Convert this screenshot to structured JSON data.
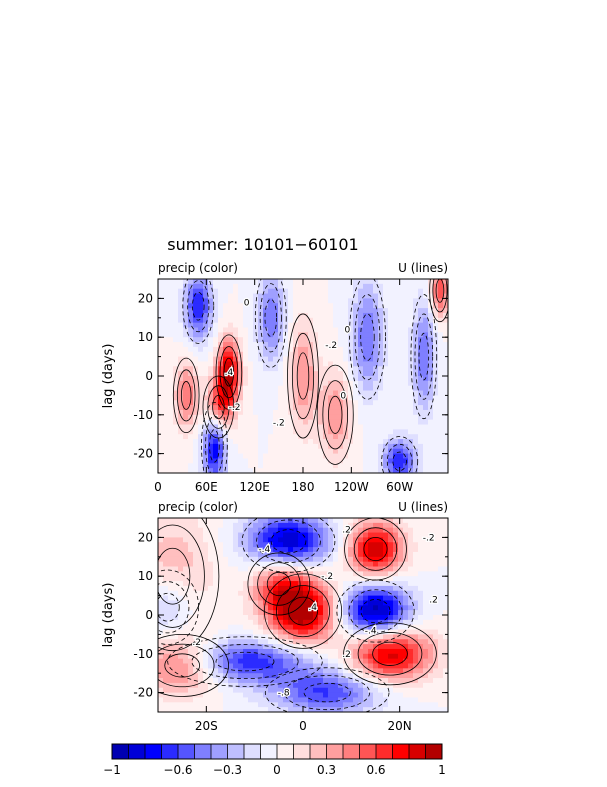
{
  "title": "summer: 10101−60101",
  "chart_data": [
    {
      "type": "heatmap",
      "panel": "top",
      "left_label": "precip (color)",
      "right_label": "U (lines)",
      "ylabel": "lag (days)",
      "ylim": [
        -25,
        25
      ],
      "yticks": [
        -20,
        -10,
        0,
        10,
        20
      ],
      "xlim": [
        0,
        360
      ],
      "xticks": [
        {
          "v": 0,
          "t": "0"
        },
        {
          "v": 60,
          "t": "60E"
        },
        {
          "v": 120,
          "t": "120E"
        },
        {
          "v": 180,
          "t": "180"
        },
        {
          "v": 240,
          "t": "120W"
        },
        {
          "v": 300,
          "t": "60W"
        }
      ],
      "blobs": [
        {
          "x": 88,
          "y": 1,
          "v": 0.9,
          "sx": 10,
          "sy": 6
        },
        {
          "x": 75,
          "y": -8,
          "v": 0.7,
          "sx": 12,
          "sy": 5
        },
        {
          "x": 50,
          "y": 18,
          "v": -0.7,
          "sx": 12,
          "sy": 6
        },
        {
          "x": 70,
          "y": -18,
          "v": -0.8,
          "sx": 10,
          "sy": 7
        },
        {
          "x": 35,
          "y": -5,
          "v": 0.5,
          "sx": 10,
          "sy": 6
        },
        {
          "x": 140,
          "y": 15,
          "v": -0.5,
          "sx": 12,
          "sy": 8
        },
        {
          "x": 180,
          "y": 0,
          "v": 0.4,
          "sx": 12,
          "sy": 10
        },
        {
          "x": 220,
          "y": -10,
          "v": 0.4,
          "sx": 14,
          "sy": 8
        },
        {
          "x": 260,
          "y": 10,
          "v": -0.5,
          "sx": 14,
          "sy": 10
        },
        {
          "x": 300,
          "y": -22,
          "v": -0.7,
          "sx": 14,
          "sy": 4
        },
        {
          "x": 330,
          "y": 5,
          "v": -0.5,
          "sx": 10,
          "sy": 10
        },
        {
          "x": 350,
          "y": 22,
          "v": 0.6,
          "sx": 8,
          "sy": 5
        }
      ],
      "contour_labels": [
        {
          "x": 88,
          "y": 1,
          "t": ".4"
        },
        {
          "x": 110,
          "y": 19,
          "t": "0"
        },
        {
          "x": 215,
          "y": 8,
          "t": "-.2"
        },
        {
          "x": 230,
          "y": -5,
          "t": "0"
        },
        {
          "x": 95,
          "y": -8,
          "t": "-.2"
        },
        {
          "x": 235,
          "y": 12,
          "t": "0"
        },
        {
          "x": 150,
          "y": -12,
          "t": "-.2"
        }
      ]
    },
    {
      "type": "heatmap",
      "panel": "bottom",
      "left_label": "precip (color)",
      "right_label": "U (lines)",
      "ylabel": "lag (days)",
      "ylim": [
        -25,
        25
      ],
      "yticks": [
        -20,
        -10,
        0,
        10,
        20
      ],
      "xlim": [
        -30,
        30
      ],
      "xticks": [
        {
          "v": -20,
          "t": "20S"
        },
        {
          "v": 0,
          "t": "0"
        },
        {
          "v": 20,
          "t": "20N"
        }
      ],
      "blobs": [
        {
          "x": 0,
          "y": 1,
          "v": 1.0,
          "sx": 5,
          "sy": 6
        },
        {
          "x": -5,
          "y": 8,
          "v": 0.5,
          "sx": 4,
          "sy": 5
        },
        {
          "x": 15,
          "y": 17,
          "v": 0.9,
          "sx": 4,
          "sy": 5
        },
        {
          "x": 18,
          "y": -10,
          "v": 0.9,
          "sx": 6,
          "sy": 5
        },
        {
          "x": -25,
          "y": -13,
          "v": 0.6,
          "sx": 6,
          "sy": 5
        },
        {
          "x": -27,
          "y": 10,
          "v": 0.3,
          "sx": 6,
          "sy": 12
        },
        {
          "x": -3,
          "y": 19,
          "v": -0.9,
          "sx": 6,
          "sy": 5
        },
        {
          "x": 15,
          "y": 1,
          "v": -1.0,
          "sx": 5,
          "sy": 5
        },
        {
          "x": -12,
          "y": -12,
          "v": -0.7,
          "sx": 10,
          "sy": 4
        },
        {
          "x": 5,
          "y": -20,
          "v": -0.6,
          "sx": 8,
          "sy": 4
        },
        {
          "x": -28,
          "y": 2,
          "v": -0.4,
          "sx": 4,
          "sy": 6
        }
      ],
      "contour_labels": [
        {
          "x": -8,
          "y": 17,
          "t": "-.4"
        },
        {
          "x": 5,
          "y": 10,
          "t": "-.2"
        },
        {
          "x": 2,
          "y": 2,
          "t": ".4"
        },
        {
          "x": 14,
          "y": -4,
          "t": "-.4"
        },
        {
          "x": -22,
          "y": -7,
          "t": ".2"
        },
        {
          "x": 9,
          "y": -10,
          "t": ".2"
        },
        {
          "x": -4,
          "y": -20,
          "t": "-.8"
        },
        {
          "x": 27,
          "y": 4,
          "t": ".2"
        },
        {
          "x": 26,
          "y": 20,
          "t": "-.2"
        },
        {
          "x": 9,
          "y": 22,
          "t": ".2"
        }
      ]
    }
  ],
  "colorbar": {
    "levels": [
      -1,
      -0.9,
      -0.8,
      -0.7,
      -0.6,
      -0.5,
      -0.4,
      -0.3,
      -0.2,
      -0.1,
      0,
      0.1,
      0.2,
      0.3,
      0.4,
      0.5,
      0.6,
      0.7,
      0.8,
      0.9,
      1
    ],
    "colors": [
      "#0000b2",
      "#0000d8",
      "#0000ff",
      "#2b2bff",
      "#5555ff",
      "#7f7fff",
      "#9f9fff",
      "#bfbfff",
      "#dfdfff",
      "#f2f2ff",
      "#fff2f2",
      "#ffdfdf",
      "#ffbfbf",
      "#ff9f9f",
      "#ff7f7f",
      "#ff5555",
      "#ff2b2b",
      "#ff0000",
      "#d80000",
      "#b20000"
    ],
    "labels": [
      {
        "v": -1,
        "t": "−1"
      },
      {
        "v": -0.6,
        "t": "−0.6"
      },
      {
        "v": -0.3,
        "t": "−0.3"
      },
      {
        "v": 0,
        "t": "0"
      },
      {
        "v": 0.3,
        "t": "0.3"
      },
      {
        "v": 0.6,
        "t": "0.6"
      },
      {
        "v": 1,
        "t": "1"
      }
    ]
  }
}
